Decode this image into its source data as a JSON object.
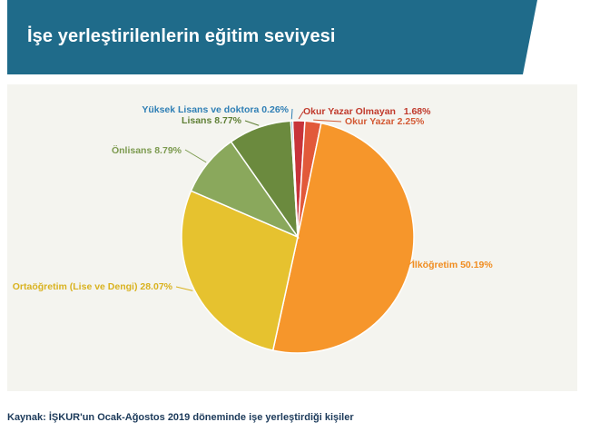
{
  "header": {
    "title": "İşe yerleştirilenlerin eğitim seviyesi"
  },
  "source": "Kaynak: İŞKUR'un Ocak-Ağostos 2019 döneminde işe yerleştirdiği kişiler",
  "colors": {
    "header_bg": "#1f6b8a",
    "panel_bg": "#f4f4ef"
  },
  "chart_data": {
    "type": "pie",
    "title": "",
    "legend": "none (data labels with leader lines)",
    "slices": [
      {
        "label": "Okur Yazar Olmayan",
        "value": 1.68,
        "display": "Okur Yazar Olmayan   1.68%",
        "color": "#c8343a",
        "label_color": "#c0392b"
      },
      {
        "label": "Okur Yazar",
        "value": 2.25,
        "display": "Okur Yazar 2.25%",
        "color": "#e2593a",
        "label_color": "#d35a35"
      },
      {
        "label": "İlköğretim",
        "value": 50.19,
        "display": "İlköğretim 50.19%",
        "color": "#f6962b",
        "label_color": "#f08c1f"
      },
      {
        "label": "Ortaöğretim (Lise ve Dengi)",
        "value": 28.07,
        "display": "Ortaöğretim (Lise ve Dengi) 28.07%",
        "color": "#e6c22f",
        "label_color": "#d9b21f"
      },
      {
        "label": "Önlisans",
        "value": 8.79,
        "display": "Önlisans 8.79%",
        "color": "#8aa85c",
        "label_color": "#7c9a4f"
      },
      {
        "label": "Lisans",
        "value": 8.77,
        "display": "Lisans 8.77%",
        "color": "#6b8a3e",
        "label_color": "#5f7f35"
      },
      {
        "label": "Yüksek Lisans ve doktora",
        "value": 0.26,
        "display": "Yüksek Lisans ve doktora 0.26%",
        "color": "#3a86b8",
        "label_color": "#2f7fb5"
      }
    ]
  }
}
